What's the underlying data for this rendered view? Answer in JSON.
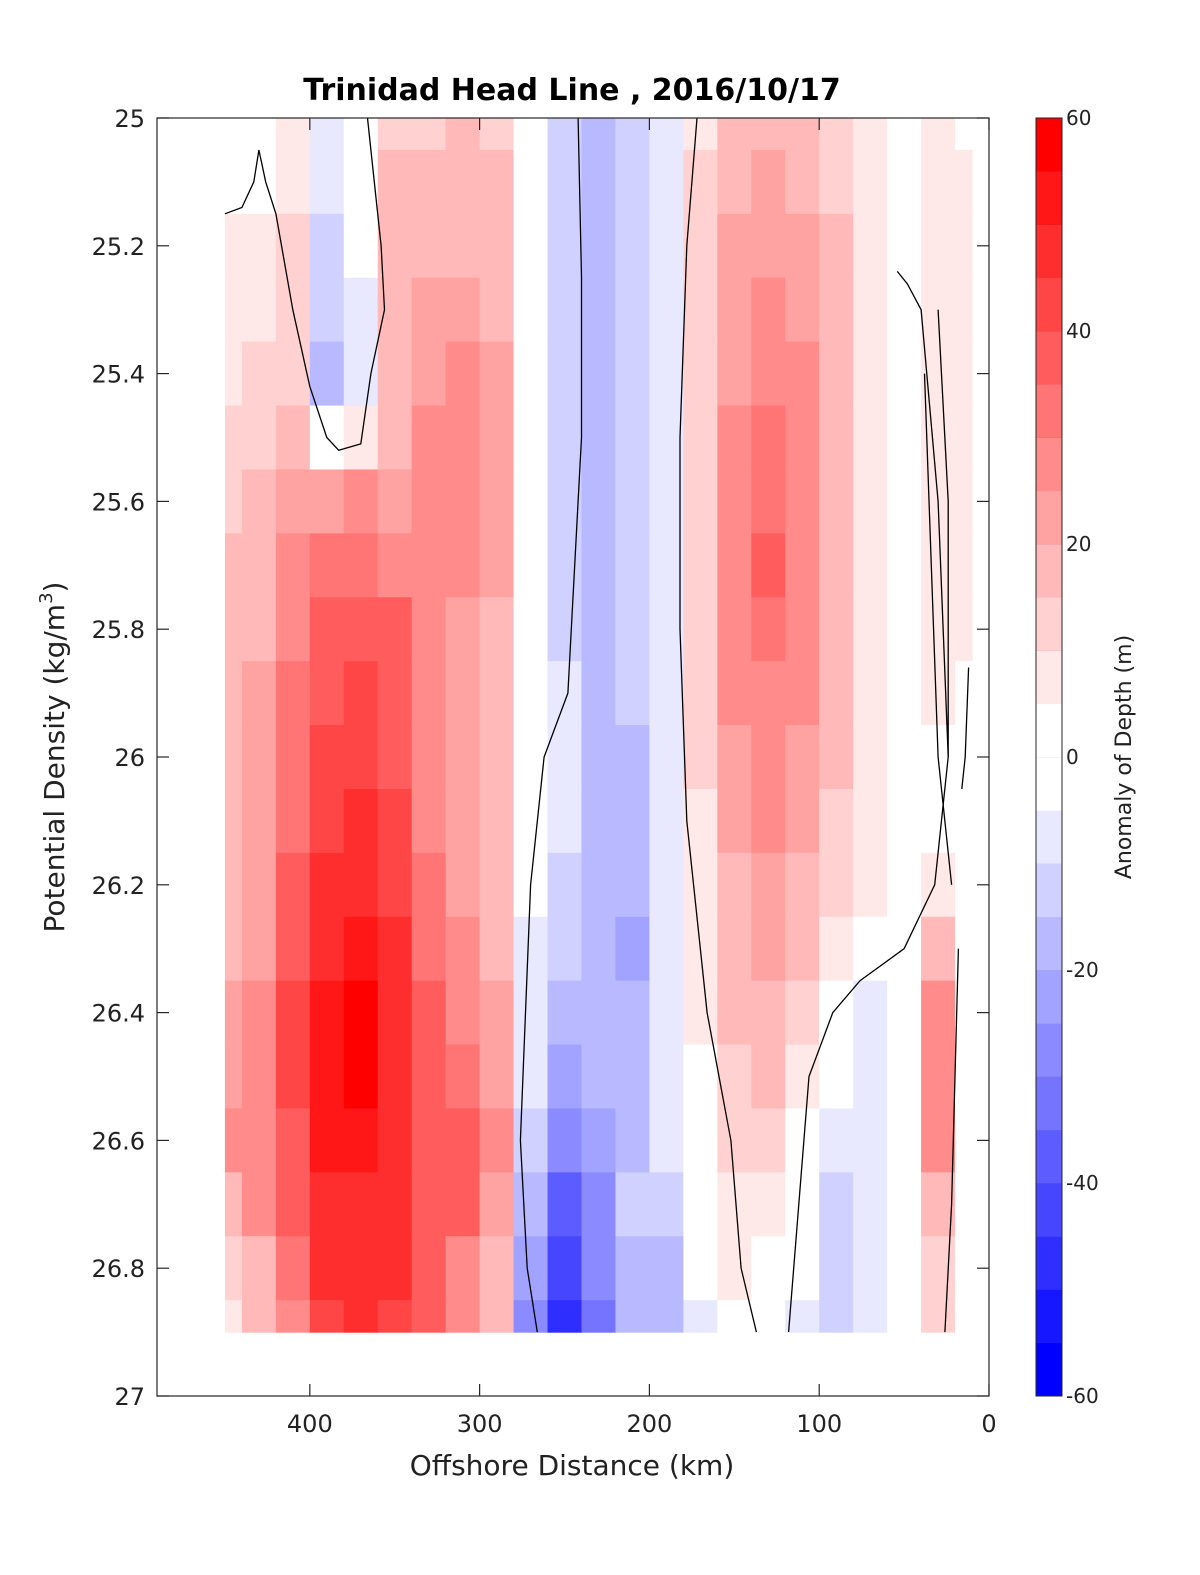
{
  "chart_data": {
    "type": "heatmap",
    "title": "Trinidad Head Line , 2016/10/17",
    "xlabel": "Offshore Distance (km)",
    "ylabel": "Potential Density (kg/m3)",
    "ylabel_main": "Potential Density (kg/m",
    "ylabel_sup": "3",
    "ylabel_close": ")",
    "colorbar_label": "Anomaly of Depth (m)",
    "xlim": [
      490,
      0
    ],
    "ylim": [
      27,
      25
    ],
    "x_ticks": [
      400,
      300,
      200,
      100,
      0
    ],
    "x_tick_labels": [
      "400",
      "300",
      "200",
      "100",
      "0"
    ],
    "y_ticks": [
      25,
      25.2,
      25.4,
      25.6,
      25.8,
      26,
      26.2,
      26.4,
      26.6,
      26.8,
      27
    ],
    "y_tick_labels": [
      "25",
      "25.2",
      "25.4",
      "25.6",
      "25.8",
      "26",
      "26.2",
      "26.4",
      "26.6",
      "26.8",
      "27"
    ],
    "colorbar_range": [
      -60,
      60
    ],
    "colorbar_step": 5,
    "colorbar_ticks": [
      60,
      40,
      20,
      0,
      -20,
      -40,
      -60
    ],
    "colorbar_tick_labels": [
      "60",
      "40",
      "20",
      "0",
      "-20",
      "-40",
      "-60"
    ],
    "colormap": {
      "negative": "#0000ff",
      "zero": "#ffffff",
      "positive": "#ff0000"
    },
    "data_extent": {
      "x": [
        450,
        10
      ],
      "y": [
        25,
        26.9
      ]
    },
    "grid": false,
    "distance_km": [
      450,
      430,
      410,
      390,
      370,
      350,
      330,
      310,
      290,
      270,
      250,
      230,
      210,
      190,
      170,
      150,
      130,
      110,
      90,
      70,
      50,
      30,
      10
    ],
    "density": [
      25,
      25.1,
      25.2,
      25.3,
      25.4,
      25.5,
      25.6,
      25.7,
      25.8,
      25.9,
      26,
      26.1,
      26.2,
      26.3,
      26.4,
      26.5,
      26.6,
      26.7,
      26.8,
      26.9
    ],
    "anomaly_m": [
      [
        2,
        2,
        8,
        -6,
        0,
        14,
        12,
        16,
        14,
        2,
        -12,
        -16,
        -14,
        -8,
        10,
        18,
        20,
        18,
        12,
        6,
        0,
        6,
        4
      ],
      [
        3,
        3,
        10,
        -8,
        0,
        16,
        16,
        18,
        16,
        2,
        -12,
        -16,
        -14,
        -8,
        12,
        20,
        22,
        20,
        14,
        8,
        0,
        8,
        6
      ],
      [
        6,
        6,
        12,
        -12,
        -4,
        18,
        20,
        20,
        18,
        2,
        -12,
        -16,
        -14,
        -8,
        12,
        22,
        24,
        22,
        16,
        8,
        0,
        8,
        8
      ],
      [
        8,
        10,
        14,
        -14,
        -6,
        20,
        22,
        24,
        20,
        2,
        -12,
        -16,
        -14,
        -8,
        14,
        24,
        26,
        24,
        18,
        10,
        0,
        8,
        8
      ],
      [
        10,
        12,
        14,
        -16,
        -8,
        20,
        24,
        26,
        22,
        2,
        -12,
        -16,
        -14,
        -8,
        14,
        24,
        28,
        26,
        18,
        10,
        0,
        6,
        8
      ],
      [
        12,
        14,
        18,
        4,
        8,
        18,
        26,
        30,
        24,
        2,
        -12,
        -16,
        -14,
        -6,
        14,
        26,
        32,
        28,
        20,
        10,
        0,
        6,
        6
      ],
      [
        14,
        16,
        22,
        24,
        26,
        24,
        26,
        28,
        24,
        2,
        -12,
        -18,
        -14,
        -6,
        14,
        28,
        34,
        30,
        20,
        10,
        0,
        6,
        6
      ],
      [
        16,
        18,
        28,
        34,
        34,
        30,
        26,
        26,
        22,
        2,
        -12,
        -18,
        -14,
        -6,
        14,
        28,
        36,
        30,
        20,
        10,
        0,
        6,
        6
      ],
      [
        18,
        20,
        30,
        38,
        40,
        36,
        28,
        24,
        20,
        2,
        -12,
        -18,
        -14,
        -6,
        14,
        28,
        34,
        30,
        20,
        10,
        0,
        6,
        6
      ],
      [
        18,
        22,
        32,
        40,
        42,
        38,
        30,
        22,
        18,
        2,
        -10,
        -16,
        -14,
        -6,
        14,
        26,
        30,
        28,
        18,
        10,
        0,
        6,
        0
      ],
      [
        18,
        22,
        32,
        42,
        44,
        40,
        30,
        22,
        16,
        0,
        -10,
        -16,
        -16,
        -6,
        12,
        24,
        28,
        24,
        16,
        8,
        0,
        4,
        -2
      ],
      [
        18,
        22,
        34,
        44,
        46,
        42,
        30,
        22,
        16,
        0,
        -10,
        -16,
        -18,
        -8,
        10,
        22,
        26,
        22,
        14,
        8,
        0,
        4,
        -2
      ],
      [
        18,
        22,
        36,
        46,
        48,
        44,
        32,
        24,
        18,
        -4,
        -12,
        -18,
        -20,
        -8,
        10,
        20,
        24,
        20,
        14,
        6,
        0,
        10,
        0
      ],
      [
        18,
        24,
        38,
        50,
        52,
        46,
        34,
        26,
        20,
        -6,
        -14,
        -18,
        -22,
        -10,
        8,
        18,
        22,
        18,
        10,
        2,
        0,
        20,
        0
      ],
      [
        22,
        28,
        42,
        54,
        56,
        48,
        36,
        28,
        22,
        -8,
        -16,
        -20,
        -20,
        -10,
        6,
        16,
        18,
        14,
        4,
        -6,
        0,
        26,
        0
      ],
      [
        24,
        28,
        42,
        54,
        58,
        50,
        38,
        32,
        24,
        -10,
        -24,
        -20,
        -18,
        -10,
        4,
        14,
        16,
        6,
        -4,
        -8,
        0,
        28,
        0
      ],
      [
        26,
        28,
        40,
        52,
        54,
        50,
        40,
        40,
        26,
        -12,
        -30,
        -22,
        -16,
        -10,
        4,
        12,
        12,
        0,
        -10,
        -10,
        0,
        26,
        0
      ],
      [
        20,
        26,
        36,
        48,
        50,
        48,
        40,
        36,
        24,
        -16,
        -36,
        -26,
        -14,
        -12,
        2,
        10,
        6,
        -4,
        -12,
        -10,
        0,
        20,
        0
      ],
      [
        12,
        20,
        32,
        46,
        48,
        46,
        38,
        30,
        20,
        -24,
        -42,
        -30,
        -18,
        -16,
        -2,
        6,
        0,
        -4,
        -12,
        -10,
        0,
        14,
        0
      ],
      [
        8,
        16,
        30,
        44,
        46,
        44,
        36,
        28,
        18,
        -30,
        -46,
        -32,
        -20,
        -18,
        -6,
        2,
        -2,
        -6,
        -14,
        -10,
        0,
        12,
        0
      ]
    ],
    "zero_contours_lines": [
      [
        [
          450,
          25.15
        ],
        [
          440,
          25.14
        ],
        [
          433,
          25.1
        ],
        [
          430,
          25.05
        ],
        [
          426,
          25.1
        ],
        [
          420,
          25.15
        ],
        [
          410,
          25.3
        ],
        [
          400,
          25.42
        ],
        [
          390,
          25.5
        ],
        [
          383,
          25.52
        ],
        [
          370,
          25.51
        ],
        [
          364,
          25.4
        ],
        [
          356,
          25.3
        ],
        [
          358,
          25.2
        ],
        [
          364,
          25.05
        ],
        [
          366,
          25.0
        ]
      ],
      [
        [
          242,
          25.0
        ],
        [
          240,
          25.25
        ],
        [
          240,
          25.5
        ],
        [
          244,
          25.7
        ],
        [
          248,
          25.9
        ],
        [
          262,
          26.0
        ],
        [
          270,
          26.2
        ],
        [
          276,
          26.6
        ],
        [
          272,
          26.8
        ],
        [
          266,
          26.9
        ]
      ],
      [
        [
          172,
          25.0
        ],
        [
          178,
          25.2
        ],
        [
          182,
          25.5
        ],
        [
          182,
          25.8
        ],
        [
          178,
          26.1
        ],
        [
          166,
          26.4
        ],
        [
          152,
          26.6
        ],
        [
          146,
          26.8
        ],
        [
          137,
          26.9
        ]
      ],
      [
        [
          54,
          25.24
        ],
        [
          48,
          25.26
        ],
        [
          40,
          25.3
        ],
        [
          30,
          25.6
        ],
        [
          24,
          26.0
        ],
        [
          32,
          26.2
        ],
        [
          50,
          26.3
        ],
        [
          76,
          26.35
        ],
        [
          92,
          26.4
        ],
        [
          106,
          26.5
        ],
        [
          112,
          26.7
        ],
        [
          118,
          26.9
        ]
      ],
      [
        [
          30,
          25.3
        ],
        [
          24,
          25.6
        ],
        [
          24,
          26.0
        ]
      ],
      [
        [
          38,
          25.4
        ],
        [
          30,
          26.0
        ],
        [
          22,
          26.2
        ]
      ],
      [
        [
          18,
          26.3
        ],
        [
          22,
          26.7
        ],
        [
          26,
          26.9
        ]
      ],
      [
        [
          12,
          25.86
        ],
        [
          14,
          26.0
        ],
        [
          16,
          26.05
        ]
      ]
    ]
  }
}
